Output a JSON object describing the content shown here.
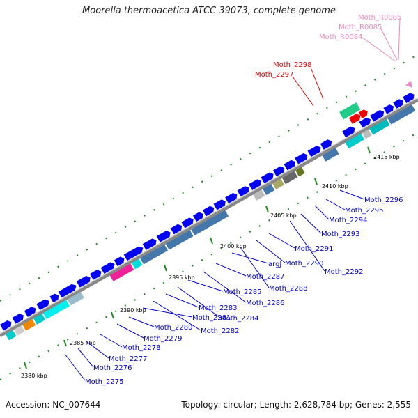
{
  "title": "Moorella thermoacetica ATCC 39073, complete genome",
  "footer": {
    "accession": "Accession: NC_007644",
    "summary": "Topology: circular; Length: 2,628,784 bp; Genes: 2,555"
  },
  "colors": {
    "outer_gene": "#0000ee",
    "label_blue": "#0000cc",
    "label_red": "#dd0000",
    "label_pink": "#ee88bb",
    "backbone": "#999999",
    "tick": "#228822"
  },
  "ticks": [
    {
      "label": "2380 kbp",
      "pos_kbp": 2380
    },
    {
      "label": "2385 kbp",
      "pos_kbp": 2385
    },
    {
      "label": "2390 kbp",
      "pos_kbp": 2390
    },
    {
      "label": "2395 kbp",
      "pos_kbp": 2395
    },
    {
      "label": "2400 kbp",
      "pos_kbp": 2400
    },
    {
      "label": "2405 kbp",
      "pos_kbp": 2405
    },
    {
      "label": "2410 kbp",
      "pos_kbp": 2410
    },
    {
      "label": "2415 kbp",
      "pos_kbp": 2415
    }
  ],
  "gene_labels_blue": [
    "Moth_2275",
    "Moth_2276",
    "Moth_2277",
    "Moth_2278",
    "Moth_2279",
    "Moth_2280",
    "Moth_2281",
    "Moth_2282",
    "Moth_2283",
    "Moth_2284",
    "Moth_2285",
    "Moth_2286",
    "Moth_2287",
    "argJ",
    "Moth_2288",
    "Moth_2290",
    "Moth_2291",
    "Moth_2292",
    "Moth_2293",
    "Moth_2294",
    "Moth_2295",
    "Moth_2296"
  ],
  "gene_labels_red": [
    "Moth_2297",
    "Moth_2298"
  ],
  "gene_labels_pink": [
    "Moth_R0084",
    "Moth_R0085",
    "Moth_R0086"
  ]
}
